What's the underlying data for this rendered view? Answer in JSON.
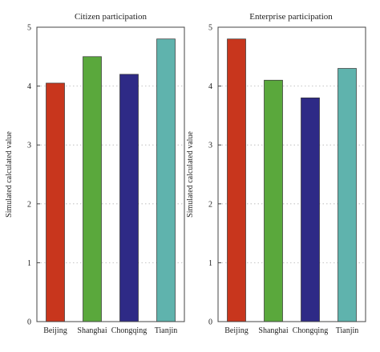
{
  "chart_data": [
    {
      "type": "bar",
      "title": "Citizen participation",
      "xlabel": "",
      "ylabel": "Simulated calculated value",
      "categories": [
        "Beijing",
        "Shanghai",
        "Chongqing",
        "Tianjin"
      ],
      "values": [
        4.05,
        4.5,
        4.2,
        4.8
      ],
      "colors": [
        "#c8361d",
        "#5aa83c",
        "#2e2a86",
        "#5fb3ad"
      ],
      "ylim": [
        0,
        5
      ],
      "yticks": [
        "0",
        "1",
        "2",
        "3",
        "4",
        "5"
      ],
      "grid": "horizontal dotted"
    },
    {
      "type": "bar",
      "title": "Enterprise participation",
      "xlabel": "",
      "ylabel": "Simulated calculated value",
      "categories": [
        "Beijing",
        "Shanghai",
        "Chongqing",
        "Tianjin"
      ],
      "values": [
        4.8,
        4.1,
        3.8,
        4.3
      ],
      "colors": [
        "#c8361d",
        "#5aa83c",
        "#2e2a86",
        "#5fb3ad"
      ],
      "ylim": [
        0,
        5
      ],
      "yticks": [
        "0",
        "1",
        "2",
        "3",
        "4",
        "5"
      ],
      "grid": "horizontal dotted"
    }
  ]
}
